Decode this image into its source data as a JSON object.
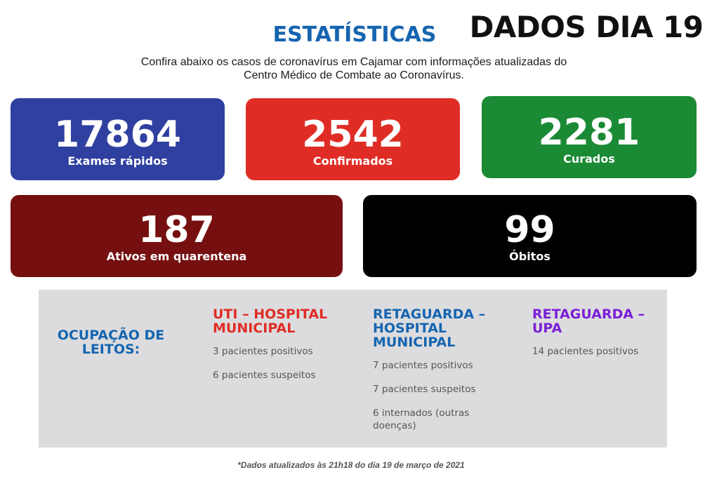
{
  "header": {
    "title": "ESTATÍSTICAS",
    "date_banner": "DADOS DIA 19",
    "subtitle": "Confira abaixo os casos de coronavírus em Cajamar com informações atualizadas do Centro Médico de Combate ao Coronavírus."
  },
  "stats": {
    "exams": {
      "value": "17864",
      "label": "Exames rápidos",
      "color": "#2f40a0"
    },
    "confirmed": {
      "value": "2542",
      "label": "Confirmados",
      "color": "#df2d25"
    },
    "cured": {
      "value": "2281",
      "label": "Curados",
      "color": "#1b8a35"
    },
    "active": {
      "value": "187",
      "label": "Ativos em quarentena",
      "color": "#761010"
    },
    "deaths": {
      "value": "99",
      "label": "Óbitos",
      "color": "#000000"
    }
  },
  "beds": {
    "label": "OCUPAÇÃO DE LEITOS:",
    "uti": {
      "title": "UTI – HOSPITAL MUNICIPAL",
      "lines": [
        "3 pacientes positivos",
        "6 pacientes suspeitos"
      ]
    },
    "retaguarda_hospital": {
      "title": "RETAGUARDA – HOSPITAL MUNICIPAL",
      "lines": [
        "7 pacientes positivos",
        "7 pacientes suspeitos",
        "6 internados (outras doenças)"
      ]
    },
    "retaguarda_upa": {
      "title": "RETAGUARDA – UPA",
      "lines": [
        "14 pacientes positivos"
      ]
    }
  },
  "footnote": "*Dados atualizados às 21h18 do dia 19 de março de 2021"
}
